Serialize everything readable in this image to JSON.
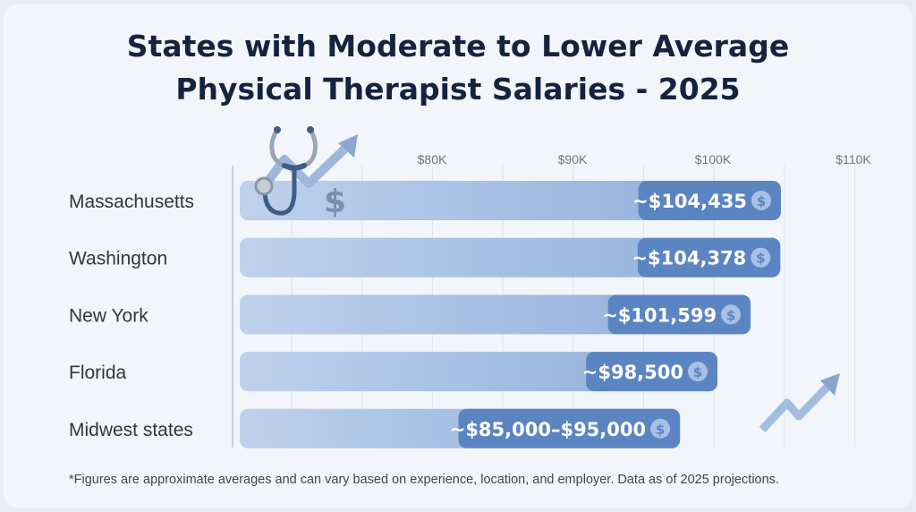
{
  "title": {
    "line1": "States with Moderate to Lower Average",
    "line2": "Physical Therapist Salaries - 2025"
  },
  "footnote": "*Figures are approximate averages and can vary based on experience, location, and employer. Data as of 2025 projections.",
  "chart_data": {
    "type": "bar",
    "orientation": "horizontal",
    "title": "States with Moderate to Lower Average Physical Therapist Salaries - 2025",
    "x_tick_labels": [
      "$80K",
      "$90K",
      "$100K",
      "$110K"
    ],
    "grid": true,
    "categories": [
      "Massachusetts",
      "Washington",
      "New York",
      "Florida",
      "Midwest states"
    ],
    "values": [
      104435,
      104378,
      101599,
      98500,
      [
        85000,
        95000
      ]
    ],
    "data_labels": [
      "~$104,435",
      "~$104,378",
      "~$101,599",
      "~$98,500",
      "~$85,000–$95,000"
    ],
    "colors": {
      "bar_start": "#bcd0ec",
      "bar_end": "#8fafdc",
      "label_pill": "#5b85c2",
      "title": "#15233f"
    }
  },
  "icons": [
    "stethoscope-icon",
    "trend-arrow-icon",
    "dollar-icon",
    "dollar-coin-icon"
  ]
}
